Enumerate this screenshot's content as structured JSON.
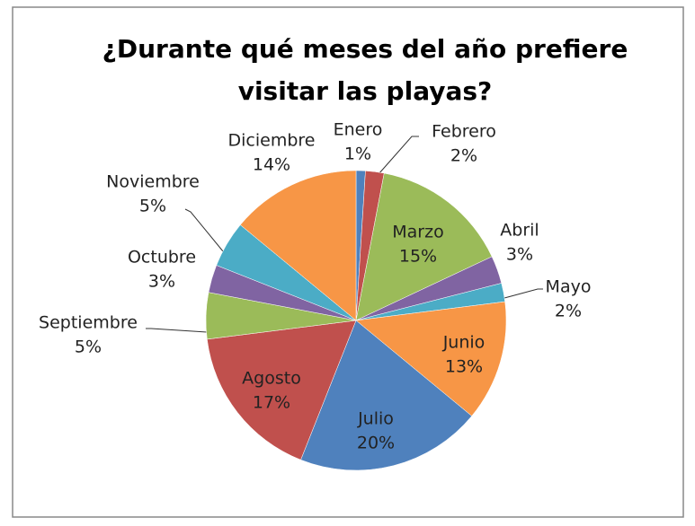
{
  "chart_data": {
    "type": "pie",
    "title": "¿Durante qué meses del año prefiere visitar las playas?",
    "categories": [
      "Enero",
      "Febrero",
      "Marzo",
      "Abril",
      "Mayo",
      "Junio",
      "Julio",
      "Agosto",
      "Septiembre",
      "Octubre",
      "Noviembre",
      "Diciembre"
    ],
    "values": [
      1,
      2,
      15,
      3,
      2,
      13,
      20,
      17,
      5,
      3,
      5,
      14
    ],
    "value_labels": [
      "1%",
      "2%",
      "15%",
      "3%",
      "2%",
      "13%",
      "20%",
      "17%",
      "5%",
      "3%",
      "5%",
      "14%"
    ],
    "colors": [
      "#4f81bd",
      "#c0504d",
      "#9bbb59",
      "#8064a2",
      "#4bacc6",
      "#f79646",
      "#4f81bd",
      "#c0504d",
      "#9bbb59",
      "#8064a2",
      "#4bacc6",
      "#f79646"
    ]
  }
}
